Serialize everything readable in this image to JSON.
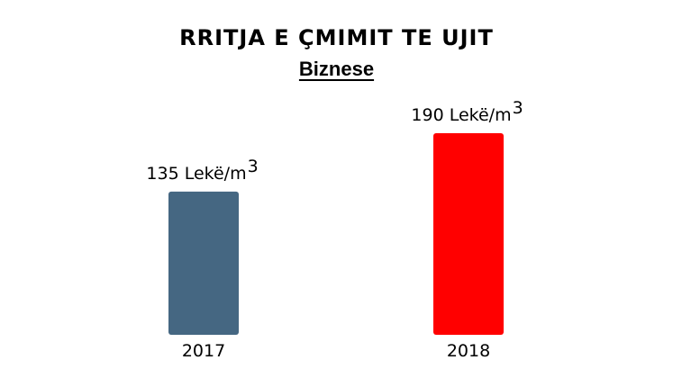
{
  "chart_data": {
    "type": "bar",
    "title": "RRITJA E ÇMIMIT TE UJIT",
    "subtitle": "Biznese",
    "categories": [
      "2017",
      "2018"
    ],
    "values": [
      135,
      190
    ],
    "data_labels": [
      "135 Lekë/m",
      "190 Lekë/m"
    ],
    "data_label_superscript": "3",
    "colors": [
      "#456782",
      "#ff0000"
    ],
    "ylim": [
      0,
      190
    ],
    "grid": false,
    "legend": "none"
  }
}
